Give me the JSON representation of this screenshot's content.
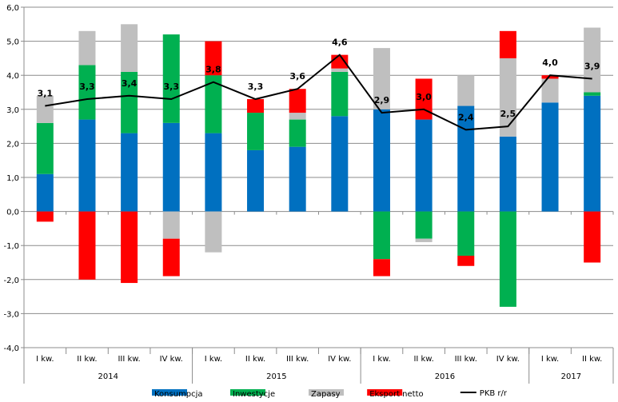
{
  "chart_data": {
    "type": "bar",
    "stacked": true,
    "ylim": [
      -4,
      6
    ],
    "yticks": [
      "-4,0",
      "-3,0",
      "-2,0",
      "-1,0",
      "0,0",
      "1,0",
      "2,0",
      "3,0",
      "4,0",
      "5,0",
      "6,0"
    ],
    "grid": true,
    "legend_position": "bottom",
    "categories": [
      "I kw.",
      "II kw.",
      "III kw.",
      "IV kw.",
      "I kw.",
      "II kw.",
      "III kw.",
      "IV kw.",
      "I kw.",
      "II kw.",
      "III kw.",
      "IV kw.",
      "I kw.",
      "II kw."
    ],
    "years": [
      {
        "label": "2014",
        "count": 4
      },
      {
        "label": "2015",
        "count": 4
      },
      {
        "label": "2016",
        "count": 4
      },
      {
        "label": "2017",
        "count": 2
      }
    ],
    "series": [
      {
        "name": "Konsumpcja",
        "color": "#0070C0",
        "values": [
          1.1,
          2.7,
          2.3,
          2.6,
          2.3,
          1.8,
          1.9,
          2.8,
          3.0,
          2.7,
          3.1,
          2.2,
          3.2,
          3.4
        ]
      },
      {
        "name": "Inwestycje",
        "color": "#00B050",
        "values": [
          1.5,
          1.6,
          1.8,
          2.6,
          1.7,
          1.1,
          0.8,
          1.3,
          -1.4,
          -0.8,
          -1.3,
          -2.8,
          0.0,
          0.1
        ]
      },
      {
        "name": "Zapasy",
        "color": "#BFBFBF",
        "values": [
          0.8,
          1.0,
          1.4,
          -0.8,
          -1.2,
          0.0,
          0.2,
          0.1,
          1.8,
          -0.1,
          0.9,
          2.3,
          0.7,
          1.9
        ]
      },
      {
        "name": "Eksport netto",
        "color": "#FF0000",
        "values": [
          -0.3,
          -2.0,
          -2.1,
          -1.1,
          1.0,
          0.4,
          0.7,
          0.4,
          -0.5,
          1.2,
          -0.3,
          0.8,
          0.1,
          -1.5
        ]
      }
    ],
    "line": {
      "name": "PKB r/r",
      "color": "#000000",
      "values": [
        3.1,
        3.3,
        3.4,
        3.3,
        3.8,
        3.3,
        3.6,
        4.6,
        2.9,
        3.0,
        2.4,
        2.5,
        4.0,
        3.9
      ],
      "labels": [
        "3,1",
        "3,3",
        "3,4",
        "3,3",
        "3,8",
        "3,3",
        "3,6",
        "4,6",
        "2,9",
        "3,0",
        "2,4",
        "2,5",
        "4,0",
        "3,9"
      ]
    }
  }
}
